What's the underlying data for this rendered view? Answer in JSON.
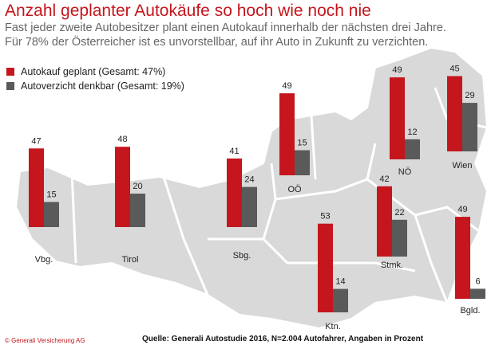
{
  "title": "Anzahl geplanter Autokäufe so hoch wie noch nie",
  "subtitle_lines": [
    "Fast jeder zweite Autobesitzer plant einen Autokauf innerhalb der nächsten drei Jahre.",
    "Für 78% der Österreicher ist es unvorstellbar, auf ihr Auto in Zukunft zu verzichten."
  ],
  "copyright": "© Generali Versicherung AG",
  "source": "Quelle: Generali Autostudie 2016, N=2.004 Autofahrer, Angaben in Prozent",
  "colors": {
    "planned": "#c4161c",
    "optional": "#5a5a5a",
    "map": "#d9d9d9",
    "title": "#c4161c"
  },
  "chart_data": {
    "type": "bar",
    "categories": [
      "Vbg.",
      "Tirol",
      "Sbg.",
      "OÖ",
      "NÖ",
      "Wien",
      "Ktn.",
      "Stmk.",
      "Bgld."
    ],
    "series": [
      {
        "name": "Autokauf geplant (Gesamt: 47%)",
        "values": [
          47,
          48,
          41,
          49,
          49,
          45,
          53,
          42,
          49
        ]
      },
      {
        "name": "Autoverzicht denkbar (Gesamt: 19%)",
        "values": [
          15,
          20,
          24,
          15,
          12,
          29,
          14,
          22,
          6
        ]
      }
    ],
    "legend_position": "top-left",
    "background": "map of Austria",
    "grid": false
  }
}
